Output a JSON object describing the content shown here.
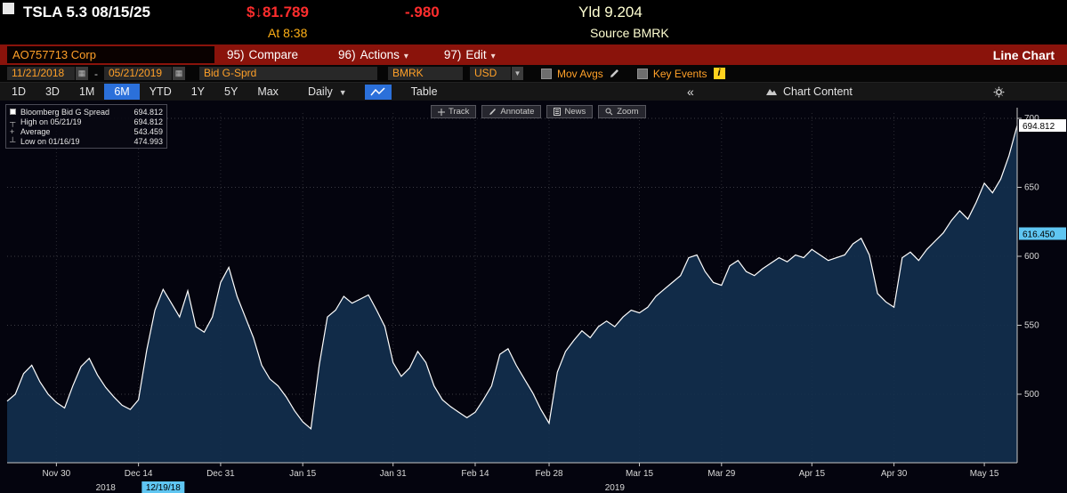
{
  "header": {
    "security": "TSLA 5.3 08/15/25",
    "price": "$↓81.789",
    "change": "-.980",
    "yield_text": "Yld 9.204",
    "at_text": "At 8:38",
    "source_text": "Source BMRK"
  },
  "menubar": {
    "ticker_field": "AO757713 Corp",
    "items": [
      {
        "num": "95)",
        "label": "Compare",
        "arrow": ""
      },
      {
        "num": "96)",
        "label": "Actions",
        "arrow": "▾"
      },
      {
        "num": "97)",
        "label": "Edit",
        "arrow": "▾"
      }
    ],
    "title": "Line Chart"
  },
  "settings": {
    "date_from": "11/21/2018",
    "date_separator": "-",
    "date_to": "05/21/2019",
    "field": "Bid G-Sprd",
    "benchmark": "BMRK",
    "currency": "USD",
    "mov_avgs_label": "Mov Avgs",
    "key_events_label": "Key Events",
    "info_glyph": "i"
  },
  "toolbar": {
    "periods": [
      "1D",
      "3D",
      "1M",
      "6M",
      "YTD",
      "1Y",
      "5Y",
      "Max"
    ],
    "active_period": "6M",
    "frequency": "Daily",
    "table_label": "Table",
    "chart_content_label": "Chart Content"
  },
  "glyphs": {
    "dropdown": "▾",
    "dropdown_small": "▼",
    "collapse": "«",
    "calendar": "▦"
  },
  "chart_overlay": {
    "track": "Track",
    "annotate": "Annotate",
    "news": "News",
    "zoom": "Zoom"
  },
  "legend": {
    "rows": [
      {
        "marker": "■",
        "label": "Bloomberg Bid G Spread",
        "value": "694.812"
      },
      {
        "marker": "┬",
        "label": "High on 05/21/19",
        "value": "694.812"
      },
      {
        "marker": "+",
        "label": "Average",
        "value": "543.459"
      },
      {
        "marker": "┴",
        "label": "Low on 01/16/19",
        "value": "474.993"
      }
    ]
  },
  "badges": {
    "last": "694.812",
    "tracked": "616.450",
    "event_date": "12/19/18"
  },
  "chart_data": {
    "type": "line",
    "title": "TSLA 5.3 08/15/25 Bloomberg Bid G Spread (6M, Daily)",
    "x_unit": "trading-day index from 11/21/2018 to 05/21/2019",
    "xlim": [
      "11/21/2018",
      "05/21/2019"
    ],
    "ylim": [
      450,
      710
    ],
    "y_ticks": [
      500,
      550,
      600,
      650,
      700
    ],
    "x_ticks": [
      {
        "index": 6,
        "label": "Nov 30"
      },
      {
        "index": 16,
        "label": "Dec 14"
      },
      {
        "index": 26,
        "label": "Dec 31"
      },
      {
        "index": 36,
        "label": "Jan 15"
      },
      {
        "index": 47,
        "label": "Jan 31"
      },
      {
        "index": 57,
        "label": "Feb 14"
      },
      {
        "index": 66,
        "label": "Feb 28"
      },
      {
        "index": 77,
        "label": "Mar 15"
      },
      {
        "index": 87,
        "label": "Mar 29"
      },
      {
        "index": 98,
        "label": "Apr 15"
      },
      {
        "index": 108,
        "label": "Apr 30"
      },
      {
        "index": 119,
        "label": "May 15"
      }
    ],
    "year_labels": [
      {
        "index": 12,
        "label": "2018"
      },
      {
        "index": 74,
        "label": "2019"
      }
    ],
    "event_marker": {
      "index": 19,
      "label": "12/19/18"
    },
    "series": [
      {
        "name": "Bloomberg Bid G Spread",
        "values": [
          495,
          500,
          515,
          521,
          509,
          500,
          494,
          490,
          506,
          520,
          526,
          514,
          505,
          498,
          492,
          489,
          496,
          532,
          561,
          576,
          566,
          556,
          575,
          549,
          545,
          556,
          581,
          592,
          571,
          556,
          541,
          521,
          511,
          506,
          498,
          488,
          480,
          475,
          521,
          556,
          561,
          571,
          566,
          569,
          572,
          561,
          549,
          523,
          513,
          519,
          531,
          523,
          506,
          496,
          491,
          487,
          483,
          487,
          496,
          506,
          529,
          533,
          521,
          511,
          501,
          489,
          479,
          516,
          531,
          539,
          546,
          541,
          549,
          553,
          549,
          556,
          561,
          559,
          563,
          571,
          576,
          581,
          586,
          599,
          601,
          589,
          581,
          579,
          593,
          597,
          589,
          586,
          591,
          595,
          599,
          596,
          601,
          599,
          605,
          601,
          597,
          599,
          601,
          609,
          613,
          601,
          573,
          567,
          563,
          599,
          603,
          597,
          605,
          611,
          617,
          626,
          633,
          627,
          639,
          653,
          646,
          656,
          673,
          694.812
        ]
      }
    ],
    "last_value": 694.812,
    "tracked_value": 616.45,
    "high": {
      "date": "05/21/19",
      "value": 694.812
    },
    "average": 543.459,
    "low": {
      "date": "01/16/19",
      "value": 474.993
    },
    "grid": true,
    "legend_position": "top-left",
    "colors": {
      "line": "#ffffff",
      "fill": "#13304f",
      "background": "#04040e",
      "accent_amber": "#ffa028",
      "menubar_red": "#8a130b",
      "active_blue": "#2b70da",
      "badge_cyan": "#5fc6f2",
      "price_red": "#ff2d2d"
    }
  }
}
